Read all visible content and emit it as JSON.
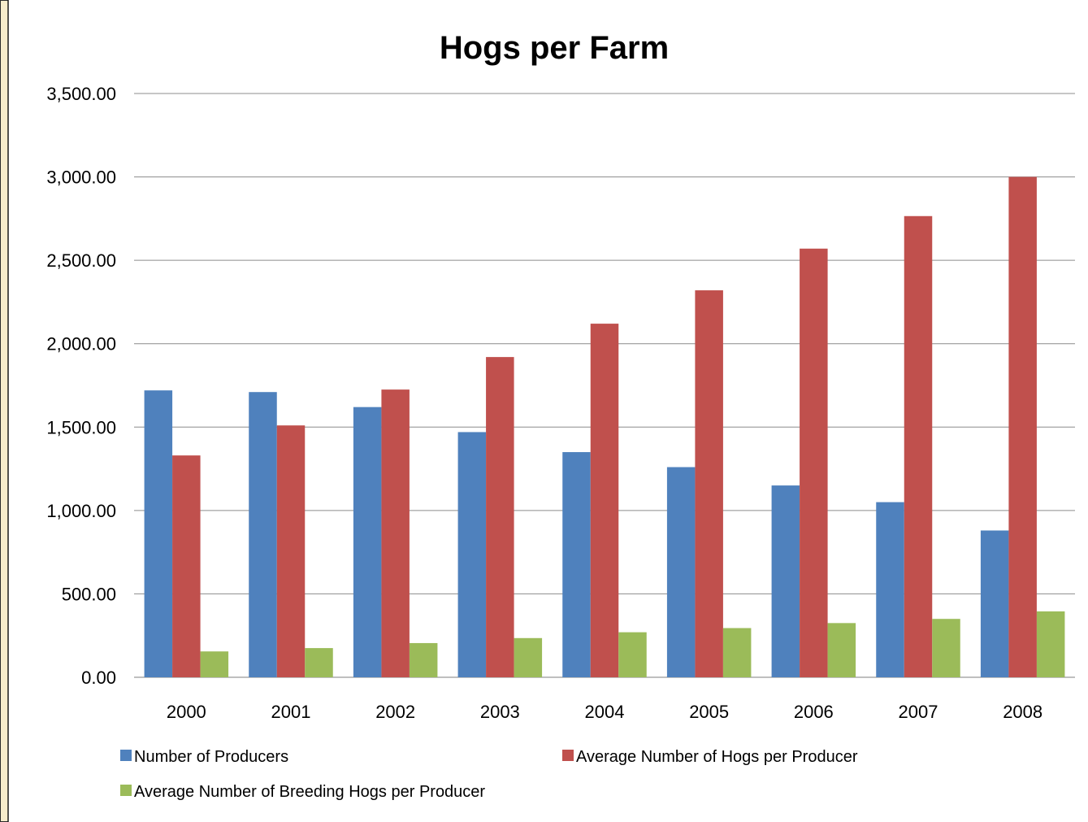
{
  "chart_data": {
    "type": "bar",
    "title": "Hogs per Farm",
    "xlabel": "",
    "ylabel": "",
    "categories": [
      "2000",
      "2001",
      "2002",
      "2003",
      "2004",
      "2005",
      "2006",
      "2007",
      "2008"
    ],
    "series": [
      {
        "name": "Number of Producers",
        "color": "#4f81bd",
        "values": [
          1720,
          1710,
          1620,
          1470,
          1350,
          1260,
          1150,
          1050,
          880
        ]
      },
      {
        "name": "Average Number of Hogs per Producer",
        "color": "#c0504d",
        "values": [
          1330,
          1510,
          1725,
          1920,
          2120,
          2320,
          2570,
          2765,
          3000
        ]
      },
      {
        "name": "Average Number of Breeding Hogs per Producer",
        "color": "#9bbb59",
        "values": [
          155,
          175,
          205,
          235,
          270,
          295,
          325,
          350,
          395
        ]
      }
    ],
    "ylim": [
      0,
      3500
    ],
    "yticks": [
      "0.00",
      "500.00",
      "1,000.00",
      "1,500.00",
      "2,000.00",
      "2,500.00",
      "3,000.00",
      "3,500.00"
    ],
    "grid": true,
    "legend_position": "bottom"
  }
}
